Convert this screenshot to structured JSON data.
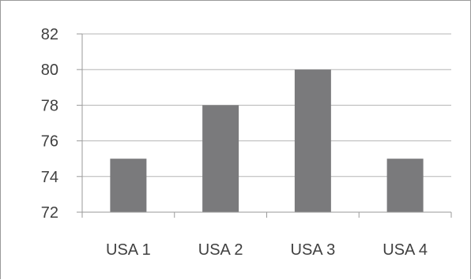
{
  "chart_data": {
    "type": "bar",
    "categories": [
      "USA 1",
      "USA 2",
      "USA 3",
      "USA 4"
    ],
    "values": [
      75,
      78,
      80,
      75
    ],
    "title": "",
    "xlabel": "",
    "ylabel": "",
    "ylim": [
      72,
      82
    ],
    "yticks": [
      72,
      74,
      76,
      78,
      80,
      82
    ],
    "grid": true,
    "legend": "none",
    "colors": {
      "bar": "#7a7a7c",
      "grid": "#b5b5b5",
      "axis": "#9a9a9a",
      "text": "#404040"
    }
  }
}
